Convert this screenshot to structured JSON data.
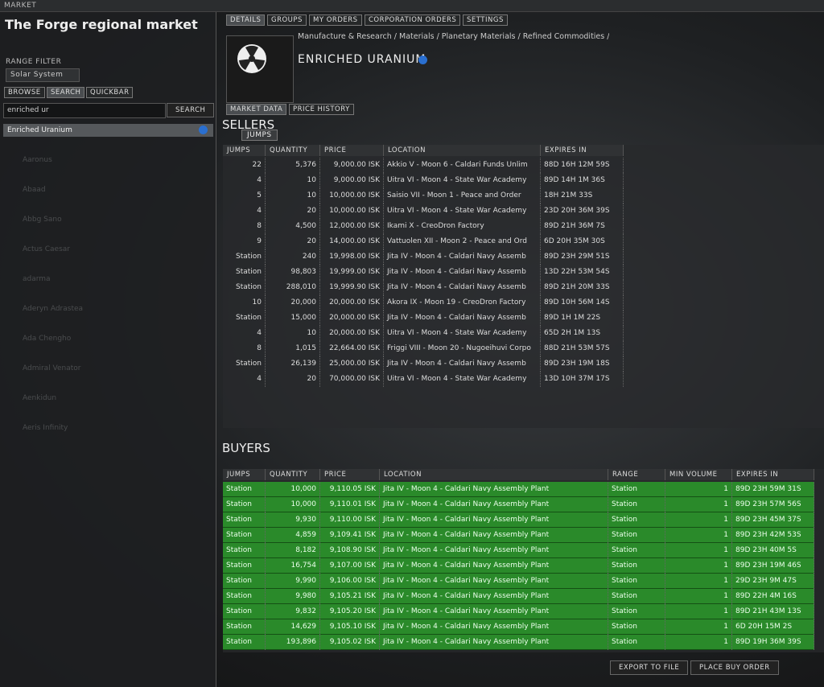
{
  "window_title": "MARKET",
  "left_panel": {
    "region_title": "The Forge regional market",
    "range_filter_label": "RANGE FILTER",
    "range_value": "Solar System",
    "tabs": [
      "BROWSE",
      "SEARCH",
      "QUICKBAR"
    ],
    "search_input": "enriched ur",
    "search_button": "SEARCH",
    "search_result": "Enriched Uranium",
    "background_names": [
      "Aaronus",
      "Abaad",
      "Abbg Sano",
      "Actus Caesar",
      "adarma",
      "Aderyn Adrastea",
      "Ada Chengho",
      "Admiral Venator",
      "Aenkidun",
      "Aeris Infinity"
    ]
  },
  "main_tabs": [
    "DETAILS",
    "GROUPS",
    "MY ORDERS",
    "CORPORATION ORDERS",
    "SETTINGS"
  ],
  "breadcrumb": "Manufacture & Research / Materials / Planetary Materials / Refined Commodities /",
  "item_name": "ENRICHED URANIUM",
  "sub_tabs": [
    "MARKET DATA",
    "PRICE HISTORY"
  ],
  "sellers": {
    "heading": "SELLERS",
    "tooltip": "JUMPS",
    "columns": [
      "JUMPS",
      "QUANTITY",
      "PRICE",
      "LOCATION",
      "EXPIRES IN"
    ],
    "rows": [
      [
        "22",
        "5,376",
        "9,000.00 ISK",
        "Akkio V - Moon 6 - Caldari Funds Unlim",
        "88D 16H 12M 59S"
      ],
      [
        "4",
        "10",
        "9,000.00 ISK",
        "Uitra VI - Moon 4 - State War Academy",
        "89D 14H 1M 36S"
      ],
      [
        "5",
        "10",
        "10,000.00 ISK",
        "Saisio VII - Moon 1 - Peace and Order",
        "18H 21M 33S"
      ],
      [
        "4",
        "20",
        "10,000.00 ISK",
        "Uitra VI - Moon 4 - State War Academy",
        "23D 20H 36M 39S"
      ],
      [
        "8",
        "4,500",
        "12,000.00 ISK",
        "Ikami X - CreoDron Factory",
        "89D 21H 36M 7S"
      ],
      [
        "9",
        "20",
        "14,000.00 ISK",
        "Vattuolen XII - Moon 2 - Peace and Ord",
        "6D 20H 35M 30S"
      ],
      [
        "Station",
        "240",
        "19,998.00 ISK",
        "Jita IV - Moon 4 - Caldari Navy Assemb",
        "89D 23H 29M 51S"
      ],
      [
        "Station",
        "98,803",
        "19,999.00 ISK",
        "Jita IV - Moon 4 - Caldari Navy Assemb",
        "13D 22H 53M 54S"
      ],
      [
        "Station",
        "288,010",
        "19,999.90 ISK",
        "Jita IV - Moon 4 - Caldari Navy Assemb",
        "89D 21H 20M 33S"
      ],
      [
        "10",
        "20,000",
        "20,000.00 ISK",
        "Akora IX - Moon 19 - CreoDron Factory",
        "89D 10H 56M 14S"
      ],
      [
        "Station",
        "15,000",
        "20,000.00 ISK",
        "Jita IV - Moon 4 - Caldari Navy Assemb",
        "89D 1H 1M 22S"
      ],
      [
        "4",
        "10",
        "20,000.00 ISK",
        "Uitra VI - Moon 4 - State War Academy",
        "65D 2H 1M 13S"
      ],
      [
        "8",
        "1,015",
        "22,664.00 ISK",
        "Friggi VIII - Moon 20 - Nugoeihuvi Corpo",
        "88D 21H 53M 57S"
      ],
      [
        "Station",
        "26,139",
        "25,000.00 ISK",
        "Jita IV - Moon 4 - Caldari Navy Assemb",
        "89D 23H 19M 18S"
      ],
      [
        "4",
        "20",
        "70,000.00 ISK",
        "Uitra VI - Moon 4 - State War Academy",
        "13D 10H 37M 17S"
      ]
    ]
  },
  "buyers": {
    "heading": "BUYERS",
    "columns": [
      "JUMPS",
      "QUANTITY",
      "PRICE",
      "LOCATION",
      "RANGE",
      "MIN VOLUME",
      "EXPIRES IN"
    ],
    "rows": [
      [
        "Station",
        "10,000",
        "9,110.05 ISK",
        "Jita IV - Moon 4 - Caldari Navy Assembly Plant",
        "Station",
        "1",
        "89D 23H 59M 31S"
      ],
      [
        "Station",
        "10,000",
        "9,110.01 ISK",
        "Jita IV - Moon 4 - Caldari Navy Assembly Plant",
        "Station",
        "1",
        "89D 23H 57M 56S"
      ],
      [
        "Station",
        "9,930",
        "9,110.00 ISK",
        "Jita IV - Moon 4 - Caldari Navy Assembly Plant",
        "Station",
        "1",
        "89D 23H 45M 37S"
      ],
      [
        "Station",
        "4,859",
        "9,109.41 ISK",
        "Jita IV - Moon 4 - Caldari Navy Assembly Plant",
        "Station",
        "1",
        "89D 23H 42M 53S"
      ],
      [
        "Station",
        "8,182",
        "9,108.90 ISK",
        "Jita IV - Moon 4 - Caldari Navy Assembly Plant",
        "Station",
        "1",
        "89D 23H 40M 5S"
      ],
      [
        "Station",
        "16,754",
        "9,107.00 ISK",
        "Jita IV - Moon 4 - Caldari Navy Assembly Plant",
        "Station",
        "1",
        "89D 23H 19M 46S"
      ],
      [
        "Station",
        "9,990",
        "9,106.00 ISK",
        "Jita IV - Moon 4 - Caldari Navy Assembly Plant",
        "Station",
        "1",
        "29D 23H 9M 47S"
      ],
      [
        "Station",
        "9,980",
        "9,105.21 ISK",
        "Jita IV - Moon 4 - Caldari Navy Assembly Plant",
        "Station",
        "1",
        "89D 22H 4M 16S"
      ],
      [
        "Station",
        "9,832",
        "9,105.20 ISK",
        "Jita IV - Moon 4 - Caldari Navy Assembly Plant",
        "Station",
        "1",
        "89D 21H 43M 13S"
      ],
      [
        "Station",
        "14,629",
        "9,105.10 ISK",
        "Jita IV - Moon 4 - Caldari Navy Assembly Plant",
        "Station",
        "1",
        "6D 20H 15M 2S"
      ],
      [
        "Station",
        "193,896",
        "9,105.02 ISK",
        "Jita IV - Moon 4 - Caldari Navy Assembly Plant",
        "Station",
        "1",
        "89D 19H 36M 39S"
      ]
    ]
  },
  "buttons": [
    "EXPORT TO FILE",
    "PLACE BUY ORDER"
  ]
}
